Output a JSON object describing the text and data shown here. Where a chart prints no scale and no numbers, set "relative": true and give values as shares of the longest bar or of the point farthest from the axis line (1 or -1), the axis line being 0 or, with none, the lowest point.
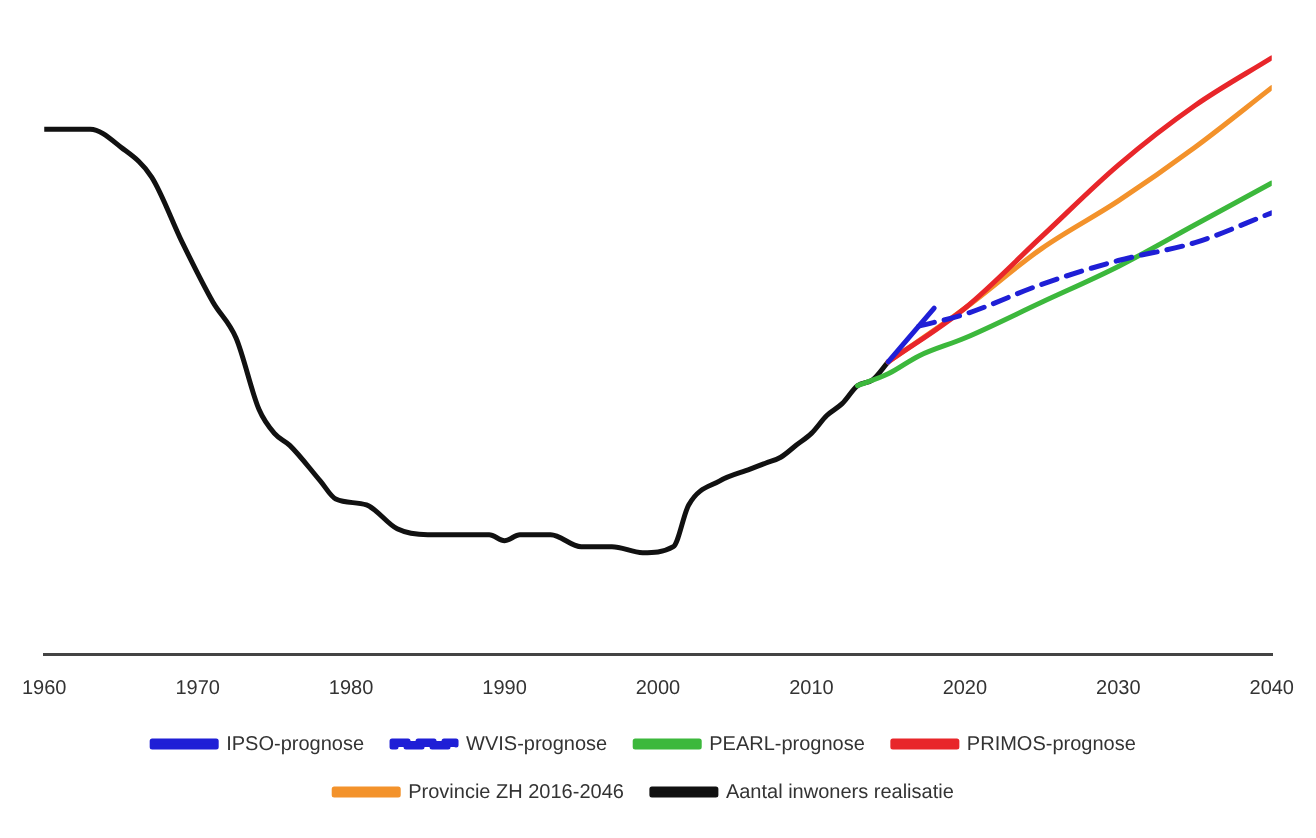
{
  "chart_data": {
    "type": "line",
    "relative": true,
    "xlim": [
      1960,
      2040
    ],
    "xticks": [
      1960,
      1970,
      1980,
      1990,
      2000,
      2010,
      2020,
      2030,
      2040
    ],
    "legend": "bottom",
    "marker": "none",
    "line_style": "solid",
    "series": [
      {
        "name": "IPSO-prognose",
        "color": "#1f1fd6",
        "x": [
          2015,
          2016,
          2018
        ],
        "values": [
          0.49,
          0.52,
          0.58
        ]
      },
      {
        "name": "WVIS-prognose",
        "color": "#1f1fd6",
        "line_style": "dashed",
        "x": [
          2017,
          2020,
          2025,
          2030,
          2035,
          2040
        ],
        "values": [
          0.55,
          0.57,
          0.62,
          0.66,
          0.69,
          0.74
        ]
      },
      {
        "name": "PEARL-prognose",
        "color": "#3cb83c",
        "x": [
          2013,
          2015,
          2017,
          2020,
          2025,
          2030,
          2035,
          2040
        ],
        "values": [
          0.45,
          0.47,
          0.5,
          0.53,
          0.59,
          0.65,
          0.72,
          0.79
        ]
      },
      {
        "name": "PRIMOS-prognose",
        "color": "#e8262a",
        "x": [
          2015,
          2020,
          2025,
          2030,
          2035,
          2040
        ],
        "values": [
          0.49,
          0.58,
          0.7,
          0.82,
          0.92,
          1
        ]
      },
      {
        "name": "Provincie ZH 2016-2046",
        "color": "#f3922b",
        "x": [
          2015,
          2020,
          2025,
          2030,
          2035,
          2040
        ],
        "values": [
          0.49,
          0.58,
          0.68,
          0.76,
          0.85,
          0.95
        ]
      },
      {
        "name": "Aantal inwoners realisatie",
        "color": "#111111",
        "x": [
          1960,
          1963,
          1965,
          1967,
          1969,
          1971,
          1972.5,
          1974,
          1975,
          1976,
          1978,
          1979,
          1981,
          1983,
          1985,
          1987,
          1989,
          1990,
          1991,
          1993,
          1995,
          1997,
          1999,
          2001,
          2002,
          2004,
          2006,
          2007,
          2008,
          2009,
          2010,
          2011,
          2012,
          2013,
          2014,
          2015
        ],
        "values": [
          0.88,
          0.88,
          0.85,
          0.8,
          0.69,
          0.59,
          0.53,
          0.41,
          0.37,
          0.35,
          0.29,
          0.26,
          0.25,
          0.21,
          0.2,
          0.2,
          0.2,
          0.19,
          0.2,
          0.2,
          0.18,
          0.18,
          0.17,
          0.18,
          0.25,
          0.29,
          0.31,
          0.32,
          0.33,
          0.35,
          0.37,
          0.4,
          0.42,
          0.45,
          0.46,
          0.49
        ]
      }
    ]
  }
}
